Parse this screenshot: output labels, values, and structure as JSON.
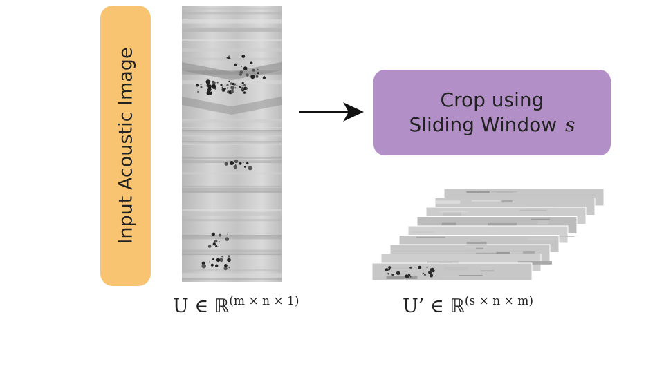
{
  "input_label": "Input Acoustic Image",
  "crop_box": {
    "line1": "Crop using",
    "line2": "Sliding Window",
    "variable": "s"
  },
  "formula_u": {
    "base": "U ∈ ",
    "set": "ℝ",
    "exponent": "(m × n × 1)"
  },
  "formula_uprime": {
    "base": "U’ ∈ ",
    "set": "ℝ",
    "exponent": "(s × n × m)"
  },
  "colors": {
    "input_label_bg": "#f8c471",
    "crop_box_bg": "#b28fc6",
    "arrow": "#111111"
  }
}
